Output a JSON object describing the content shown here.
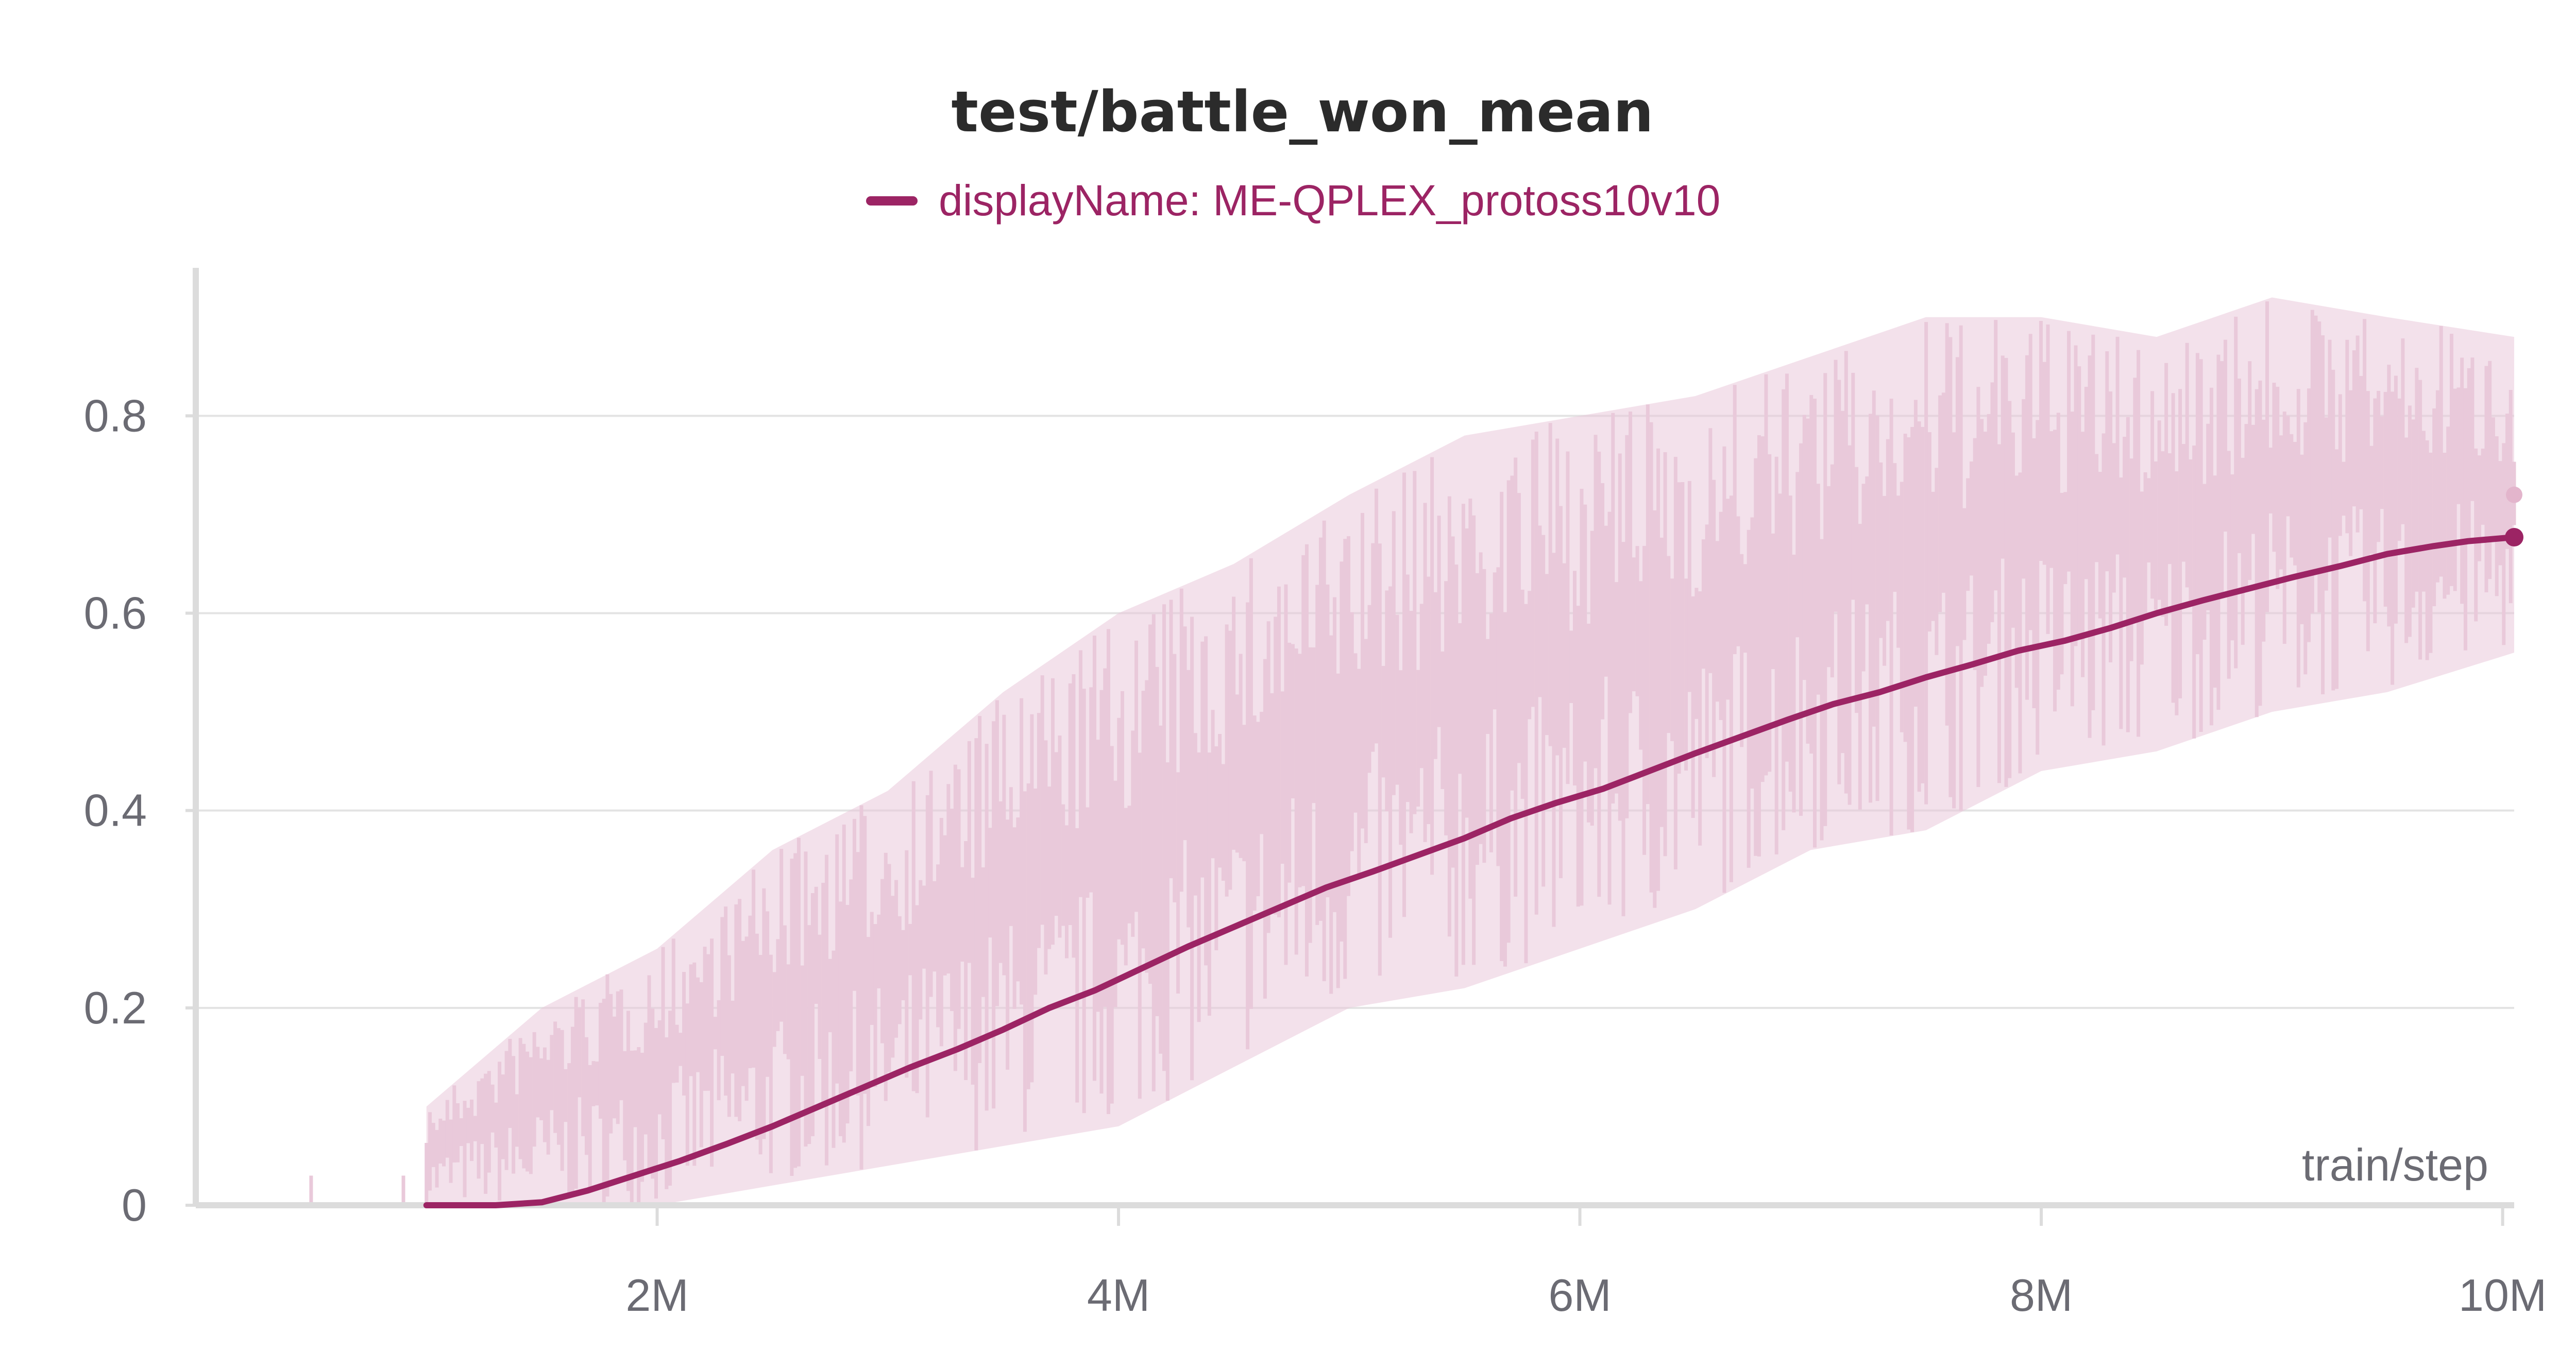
{
  "chart_data": {
    "type": "line",
    "title": "test/battle_won_mean",
    "xlabel": "train/step",
    "ylabel": "",
    "xlim": [
      0,
      10050000
    ],
    "ylim": [
      0,
      0.95
    ],
    "grid": true,
    "legend_position": "top-center",
    "x_tick_labels": [
      "2M",
      "4M",
      "6M",
      "8M",
      "10M"
    ],
    "y_tick_labels": [
      "0",
      "0.2",
      "0.4",
      "0.6",
      "0.8"
    ],
    "colors": {
      "smoothed": "#9c2464",
      "raw": "#e9c9da",
      "grid": "#e3e3e3",
      "axis": "#dcdcdc"
    },
    "series": [
      {
        "name": "displayName: ME-QPLEX_protoss10v10",
        "role": "smoothed",
        "x": [
          1000000,
          1300000,
          1500000,
          1700000,
          1900000,
          2100000,
          2300000,
          2500000,
          2700000,
          2900000,
          3100000,
          3300000,
          3500000,
          3700000,
          3900000,
          4100000,
          4300000,
          4500000,
          4700000,
          4900000,
          5100000,
          5300000,
          5500000,
          5700000,
          5900000,
          6100000,
          6300000,
          6500000,
          6700000,
          6900000,
          7100000,
          7300000,
          7500000,
          7700000,
          7900000,
          8100000,
          8300000,
          8500000,
          8700000,
          8900000,
          9100000,
          9300000,
          9500000,
          9700000,
          9850000,
          10050000
        ],
        "y": [
          0.0,
          0.0,
          0.003,
          0.015,
          0.03,
          0.045,
          0.062,
          0.08,
          0.1,
          0.12,
          0.14,
          0.158,
          0.178,
          0.2,
          0.218,
          0.24,
          0.262,
          0.282,
          0.302,
          0.322,
          0.338,
          0.355,
          0.372,
          0.392,
          0.408,
          0.422,
          0.44,
          0.458,
          0.475,
          0.492,
          0.508,
          0.52,
          0.535,
          0.548,
          0.562,
          0.572,
          0.585,
          0.6,
          0.613,
          0.625,
          0.637,
          0.648,
          0.66,
          0.668,
          0.673,
          0.677
        ]
      },
      {
        "name": "",
        "role": "raw",
        "x": [
          1000000,
          1500000,
          2000000,
          2500000,
          3000000,
          3500000,
          4000000,
          4500000,
          5000000,
          5500000,
          6000000,
          6500000,
          7000000,
          7500000,
          8000000,
          8500000,
          9000000,
          9500000,
          10050000
        ],
        "y_low": [
          0.0,
          0.0,
          0.0,
          0.02,
          0.04,
          0.06,
          0.08,
          0.14,
          0.2,
          0.22,
          0.26,
          0.3,
          0.36,
          0.38,
          0.44,
          0.46,
          0.5,
          0.52,
          0.56
        ],
        "y_high": [
          0.1,
          0.2,
          0.26,
          0.36,
          0.42,
          0.52,
          0.6,
          0.65,
          0.72,
          0.78,
          0.8,
          0.82,
          0.86,
          0.9,
          0.9,
          0.88,
          0.92,
          0.9,
          0.88
        ],
        "last_value": 0.72
      }
    ]
  }
}
